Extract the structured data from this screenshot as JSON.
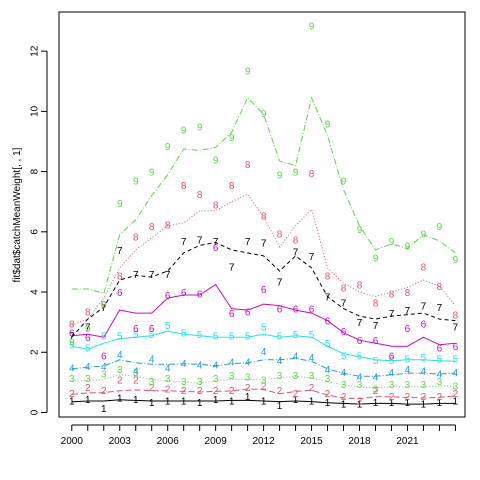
{
  "chart_data": {
    "type": "line",
    "ylabel": "fit$dat$catchMeanWeight[, , 1]",
    "xlabel": "",
    "xlim": [
      1999.2,
      2024.6
    ],
    "ylim": [
      -0.15,
      13.3
    ],
    "grid": false,
    "x_ticks": [
      "2000",
      "2003",
      "2006",
      "2009",
      "2012",
      "2015",
      "2018",
      "2021"
    ],
    "y_ticks": [
      "0",
      "2",
      "4",
      "6",
      "8",
      "10",
      "12"
    ],
    "x": [
      2000,
      2001,
      2002,
      2003,
      2004,
      2005,
      2006,
      2007,
      2008,
      2009,
      2010,
      2011,
      2012,
      2013,
      2014,
      2015,
      2016,
      2017,
      2018,
      2019,
      2020,
      2021,
      2022,
      2023,
      2024
    ],
    "series": [
      {
        "name": "1",
        "color": "#000000",
        "dash": "",
        "width": 1,
        "obs": [
          0.35,
          0.4,
          0.1,
          0.45,
          0.4,
          0.3,
          0.35,
          0.35,
          0.3,
          0.4,
          0.35,
          0.5,
          0.35,
          0.2,
          0.4,
          0.35,
          0.3,
          0.25,
          0.25,
          0.3,
          0.3,
          0.3,
          0.25,
          0.3,
          0.35
        ],
        "fit": [
          0.35,
          0.38,
          0.38,
          0.42,
          0.4,
          0.38,
          0.38,
          0.38,
          0.38,
          0.38,
          0.4,
          0.4,
          0.38,
          0.36,
          0.38,
          0.36,
          0.32,
          0.3,
          0.28,
          0.3,
          0.3,
          0.28,
          0.28,
          0.3,
          0.3
        ]
      },
      {
        "name": "2",
        "color": "#DF536B",
        "dash": "6,3",
        "width": 1,
        "obs": [
          0.6,
          0.8,
          0.7,
          1.05,
          1.05,
          0.8,
          0.75,
          0.7,
          0.7,
          0.7,
          0.7,
          0.8,
          0.85,
          0.7,
          0.6,
          0.8,
          0.6,
          0.5,
          0.35,
          0.7,
          0.5,
          0.5,
          0.5,
          0.5,
          0.6
        ],
        "fit": [
          0.6,
          0.65,
          0.66,
          0.72,
          0.75,
          0.72,
          0.72,
          0.7,
          0.68,
          0.7,
          0.72,
          0.78,
          0.76,
          0.62,
          0.7,
          0.74,
          0.58,
          0.48,
          0.46,
          0.52,
          0.52,
          0.5,
          0.48,
          0.5,
          0.55
        ]
      },
      {
        "name": "3",
        "color": "#61D04F",
        "dash": "1,2",
        "width": 1,
        "obs": [
          1.1,
          1.1,
          1.25,
          1.4,
          1.3,
          1.0,
          1.1,
          1.0,
          1.0,
          1.1,
          1.2,
          1.15,
          1.05,
          1.2,
          1.2,
          1.2,
          1.1,
          0.9,
          0.9,
          0.75,
          0.9,
          0.9,
          0.9,
          1.0,
          0.85
        ],
        "fit": [
          1.05,
          1.05,
          1.1,
          1.25,
          1.2,
          1.1,
          1.05,
          1.02,
          0.98,
          1.05,
          1.1,
          1.1,
          1.1,
          1.15,
          1.2,
          1.15,
          1.02,
          0.92,
          0.85,
          0.82,
          0.85,
          0.85,
          0.85,
          0.88,
          0.88
        ]
      },
      {
        "name": "4",
        "color": "#2297E6",
        "dash": "6,2,1,2",
        "width": 1,
        "obs": [
          1.45,
          1.5,
          1.5,
          1.9,
          1.35,
          1.75,
          1.45,
          1.6,
          1.55,
          1.55,
          1.65,
          1.65,
          2.0,
          1.7,
          1.85,
          1.8,
          1.4,
          1.3,
          1.15,
          1.15,
          1.3,
          1.4,
          1.35,
          1.25,
          1.3
        ],
        "fit": [
          1.45,
          1.5,
          1.55,
          1.75,
          1.65,
          1.6,
          1.6,
          1.62,
          1.6,
          1.55,
          1.62,
          1.65,
          1.75,
          1.75,
          1.8,
          1.7,
          1.45,
          1.3,
          1.2,
          1.2,
          1.25,
          1.3,
          1.3,
          1.28,
          1.3
        ]
      },
      {
        "name": "5",
        "color": "#28E2E5",
        "dash": "",
        "width": 1,
        "obs": [
          2.2,
          2.1,
          2.5,
          2.5,
          2.55,
          2.55,
          2.85,
          2.6,
          2.55,
          2.5,
          2.5,
          2.5,
          2.8,
          2.5,
          2.55,
          2.55,
          2.25,
          1.85,
          1.85,
          1.7,
          1.7,
          1.75,
          1.8,
          1.75,
          1.75
        ],
        "fit": [
          2.2,
          2.1,
          2.3,
          2.45,
          2.5,
          2.55,
          2.7,
          2.6,
          2.55,
          2.5,
          2.5,
          2.5,
          2.6,
          2.5,
          2.55,
          2.5,
          2.2,
          1.95,
          1.85,
          1.75,
          1.72,
          1.75,
          1.75,
          1.72,
          1.7
        ]
      },
      {
        "name": "6",
        "color": "#CD0BBC",
        "dash": "",
        "width": 1,
        "obs": [
          2.6,
          2.45,
          1.85,
          3.95,
          2.75,
          2.75,
          3.85,
          3.95,
          3.9,
          5.45,
          3.25,
          3.3,
          4.05,
          3.4,
          3.4,
          3.4,
          3.0,
          2.65,
          2.35,
          2.35,
          1.85,
          2.75,
          2.9,
          2.1,
          2.15
        ],
        "fit": [
          2.55,
          2.6,
          2.5,
          3.4,
          3.3,
          3.3,
          3.8,
          3.9,
          3.9,
          4.25,
          3.45,
          3.4,
          3.6,
          3.55,
          3.4,
          3.3,
          3.05,
          2.65,
          2.4,
          2.3,
          2.2,
          2.2,
          2.5,
          2.25,
          2.3
        ]
      },
      {
        "name": "7",
        "color": "#000000",
        "dash": "4,3",
        "width": 1,
        "obs": [
          2.5,
          2.8,
          3.45,
          5.35,
          4.55,
          4.55,
          4.55,
          5.65,
          5.7,
          5.65,
          4.8,
          5.65,
          5.6,
          4.3,
          5.3,
          5.15,
          3.8,
          3.6,
          2.95,
          2.85,
          3.25,
          3.35,
          3.5,
          3.45,
          2.8
        ],
        "fit": [
          2.5,
          3.1,
          3.5,
          4.4,
          4.55,
          4.5,
          4.7,
          5.3,
          5.55,
          5.65,
          5.4,
          5.3,
          5.2,
          4.7,
          5.2,
          4.8,
          3.85,
          3.45,
          3.2,
          3.1,
          3.2,
          3.25,
          3.3,
          3.1,
          3.05
        ]
      },
      {
        "name": "8",
        "color": "#DF536B",
        "dash": "1,2",
        "width": 1,
        "obs": [
          2.9,
          3.3,
          3.55,
          4.5,
          5.8,
          6.15,
          6.2,
          7.5,
          7.2,
          6.85,
          7.5,
          8.2,
          6.5,
          5.9,
          5.7,
          7.9,
          4.5,
          4.1,
          4.2,
          3.6,
          3.9,
          3.95,
          4.8,
          4.15,
          3.2
        ],
        "fit": [
          2.9,
          3.1,
          3.8,
          4.8,
          5.4,
          5.8,
          6.2,
          6.3,
          6.7,
          6.7,
          7.0,
          7.25,
          6.5,
          5.5,
          6.2,
          6.75,
          4.8,
          4.3,
          4.0,
          3.85,
          4.0,
          4.15,
          4.4,
          4.2,
          3.55
        ]
      },
      {
        "name": "9",
        "color": "#61D04F",
        "dash": "6,2,1,2",
        "width": 1,
        "obs": [
          2.3,
          2.75,
          3.55,
          6.9,
          7.65,
          7.95,
          8.8,
          9.35,
          9.45,
          8.35,
          9.1,
          11.3,
          9.9,
          7.85,
          7.95,
          12.8,
          9.55,
          7.65,
          6.05,
          5.1,
          5.65,
          5.5,
          5.9,
          6.15,
          5.05
        ],
        "fit": [
          4.1,
          4.1,
          3.95,
          5.9,
          6.4,
          7.2,
          7.9,
          8.75,
          8.7,
          8.8,
          9.3,
          10.45,
          9.9,
          8.35,
          8.2,
          10.45,
          9.2,
          7.4,
          6.2,
          5.4,
          5.6,
          5.45,
          5.9,
          5.7,
          5.3
        ]
      }
    ]
  }
}
